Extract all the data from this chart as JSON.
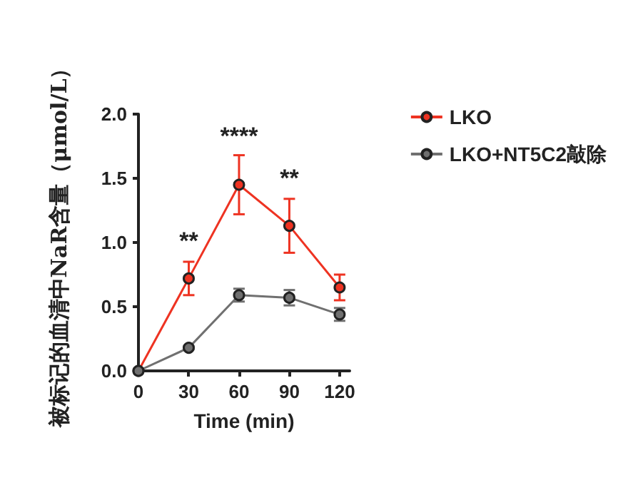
{
  "chart_data": {
    "type": "line",
    "xlabel": "Time (min)",
    "ylabel": "被标记的血清中NaR含量（μmol/L）",
    "x": [
      0,
      30,
      60,
      90,
      120
    ],
    "xlim": [
      0,
      126
    ],
    "xticks": [
      0,
      30,
      60,
      90,
      120
    ],
    "ylim": [
      0,
      2
    ],
    "yticks": [
      {
        "value": 0,
        "label": "0.0"
      },
      0.5,
      {
        "value": 1,
        "label": "1.0"
      },
      1.5,
      {
        "value": 2,
        "label": "2.0"
      }
    ],
    "series": [
      {
        "name": "LKO",
        "color": "#ee3322",
        "values": [
          0,
          0.72,
          1.45,
          1.13,
          0.65
        ],
        "errors": [
          null,
          0.13,
          0.23,
          0.21,
          0.1
        ]
      },
      {
        "name": "LKO+NT5C2敲除",
        "color": "#707070",
        "values": [
          0,
          0.18,
          0.59,
          0.57,
          0.44
        ],
        "errors": [
          null,
          0.01,
          0.05,
          0.06,
          0.05
        ]
      }
    ],
    "annotations": [
      {
        "text": "**",
        "x": 30,
        "y": 0.86
      },
      {
        "text": "****",
        "x": 60,
        "y": 1.68
      },
      {
        "text": "**",
        "x": 90,
        "y": 1.35
      }
    ],
    "marker": "circle",
    "line_style": "solid",
    "grid": false,
    "legend": "top right"
  }
}
